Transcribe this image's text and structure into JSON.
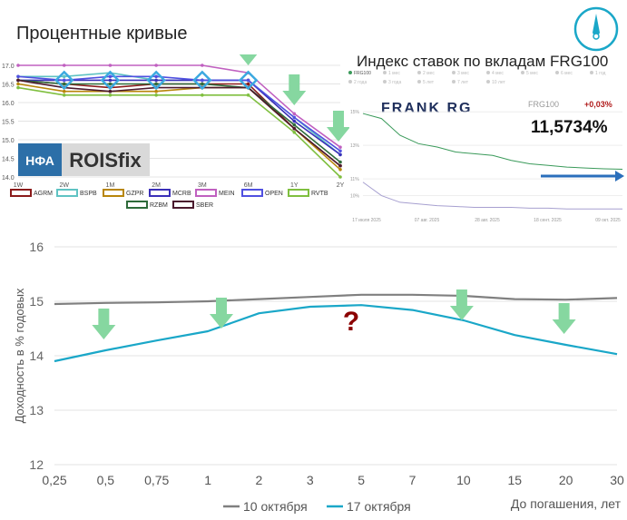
{
  "compass_icon": "compass-icon",
  "colors": {
    "accent": "#1AA7C8",
    "grey": "#808080",
    "arrow": "#86D7A0",
    "question": "#8B0000",
    "frank_blue": "#1F2F5C"
  },
  "curves_panel": {
    "title": "Процентные кривые",
    "logo_nfa": "НФА",
    "logo_rois": "ROISfix",
    "chart_data": {
      "type": "line",
      "categories": [
        "1W",
        "2W",
        "1M",
        "2M",
        "3M",
        "6M",
        "1Y",
        "2Y"
      ],
      "ylim": [
        14.0,
        17.0
      ],
      "yticks": [
        "17.0",
        "16.5",
        "16.0",
        "15.5",
        "15.0",
        "14.5",
        "14.0"
      ],
      "series": [
        {
          "name": "AGRM",
          "color": "#8B1A1A",
          "values": [
            16.6,
            16.5,
            16.4,
            16.5,
            16.5,
            16.5,
            15.3,
            14.3
          ]
        },
        {
          "name": "BSPB",
          "color": "#5FC3C3",
          "values": [
            16.7,
            16.7,
            16.8,
            16.6,
            16.6,
            16.6,
            15.6,
            14.6
          ]
        },
        {
          "name": "GZPR",
          "color": "#B8860B",
          "values": [
            16.5,
            16.3,
            16.3,
            16.3,
            16.4,
            16.4,
            15.3,
            14.2
          ]
        },
        {
          "name": "MCRB",
          "color": "#3A2FB8",
          "values": [
            16.6,
            16.6,
            16.6,
            16.6,
            16.6,
            16.6,
            15.5,
            14.6
          ]
        },
        {
          "name": "MEIN",
          "color": "#C060C0",
          "values": [
            17.0,
            17.0,
            17.0,
            17.0,
            17.0,
            16.8,
            15.7,
            14.8
          ]
        },
        {
          "name": "OPEN",
          "color": "#5050E0",
          "values": [
            16.7,
            16.6,
            16.7,
            16.7,
            16.6,
            16.6,
            15.6,
            14.7
          ]
        },
        {
          "name": "RVTB",
          "color": "#7FBF3F",
          "values": [
            16.4,
            16.2,
            16.2,
            16.2,
            16.2,
            16.2,
            15.2,
            14.0
          ]
        },
        {
          "name": "RZBM",
          "color": "#2E6B3A",
          "values": [
            16.6,
            16.5,
            16.5,
            16.5,
            16.5,
            16.4,
            15.4,
            14.4
          ]
        },
        {
          "name": "SBER",
          "color": "#4B1A2E",
          "values": [
            16.6,
            16.4,
            16.3,
            16.4,
            16.4,
            16.4,
            15.3,
            14.3
          ]
        }
      ]
    }
  },
  "index_panel": {
    "title": "Индекс ставок по вкладам FRG100",
    "brand": "FRANK RG",
    "index_label": "FRG100",
    "change": "+0,03%",
    "value": "11,5734%",
    "legend_tiny": [
      "FRG100",
      "1 мес",
      "2 мес",
      "3 мес",
      "4 мес",
      "5 мес",
      "6 мес",
      "1 год",
      "2 года",
      "3 года",
      "5 лет",
      "7 лет",
      "10 лет"
    ],
    "chart_data": {
      "type": "line",
      "yticks": [
        "15%",
        "13%",
        "11%",
        "10%"
      ],
      "x_labels": [
        "17 июля 2025",
        "07 авг. 2025",
        "28 авг. 2025",
        "18 сент. 2025",
        "09 окт. 2025"
      ],
      "series": [
        {
          "name": "",
          "color": "#3A9A5A",
          "values": [
            14.9,
            14.6,
            13.6,
            13.1,
            12.9,
            12.6,
            12.5,
            12.4,
            12.1,
            11.9,
            11.8,
            11.7,
            11.65,
            11.6,
            11.57
          ]
        },
        {
          "name": "",
          "color": "#A7A0D0",
          "values": [
            10.8,
            10.0,
            9.6,
            9.5,
            9.4,
            9.35,
            9.3,
            9.3,
            9.3,
            9.25,
            9.25,
            9.2,
            9.2,
            9.2,
            9.2
          ]
        }
      ]
    }
  },
  "main_chart": {
    "ylabel": "Доходность в % годовых",
    "xlabel": "До погашения, лет",
    "question": "?",
    "chart_data": {
      "type": "line",
      "categories": [
        "0,25",
        "0,5",
        "0,75",
        "1",
        "2",
        "3",
        "5",
        "7",
        "10",
        "15",
        "20",
        "30"
      ],
      "ylim": [
        12,
        16
      ],
      "yticks": [
        "16",
        "15",
        "14",
        "13",
        "12"
      ],
      "series": [
        {
          "name": "10 октября",
          "color": "#808080",
          "values": [
            14.95,
            14.97,
            14.98,
            15.0,
            15.04,
            15.08,
            15.12,
            15.12,
            15.1,
            15.04,
            15.03,
            15.06
          ]
        },
        {
          "name": "17 октября",
          "color": "#1AA7C8",
          "values": [
            13.9,
            14.1,
            14.28,
            14.45,
            14.78,
            14.9,
            14.93,
            14.84,
            14.65,
            14.38,
            14.2,
            14.03
          ]
        }
      ]
    }
  }
}
